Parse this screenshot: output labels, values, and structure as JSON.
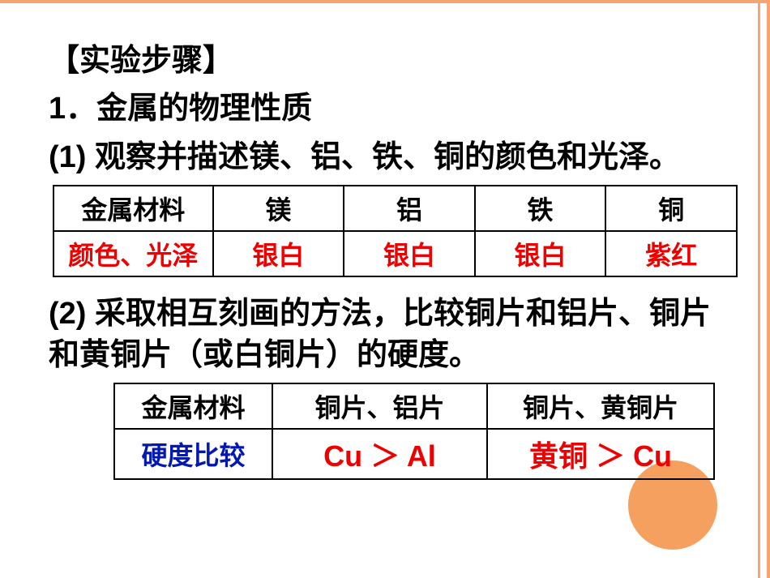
{
  "title_bracket": "【实验步骤】",
  "section1_title": "1．金属的物理性质",
  "section1_sub": "(1) 观察并描述镁、铝、铁、铜的颜色和光泽。",
  "table1": {
    "header": [
      "金属材料",
      "镁",
      "铝",
      "铁",
      "铜"
    ],
    "row_label": "颜色、光泽",
    "values": [
      "银白",
      "银白",
      "银白",
      "紫红"
    ]
  },
  "section2_sub": "(2) 采取相互刻画的方法，比较铜片和铝片、铜片和黄铜片（或白铜片）的硬度。",
  "table2": {
    "header": [
      "金属材料",
      "铜片、铝片",
      "铜片、黄铜片"
    ],
    "row_label": "硬度比较",
    "values": [
      "Cu ＞ Al",
      "黄铜 ＞ Cu"
    ]
  }
}
